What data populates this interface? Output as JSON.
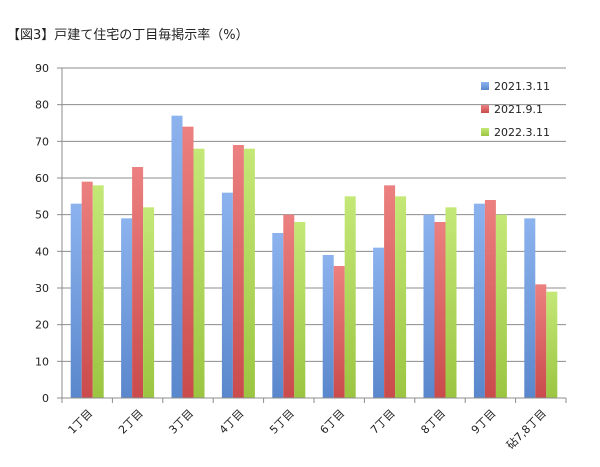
{
  "title": "【図3】戸建て住宅の丁目毎掲示率（%）",
  "colors": {
    "series": [
      "#6699e8",
      "#e65555",
      "#b0e04a"
    ],
    "grid": "#8c8c8c",
    "axis": "#8c8c8c"
  },
  "chart_data": {
    "type": "bar",
    "title": "【図3】戸建て住宅の丁目毎掲示率（%）",
    "xlabel": "",
    "ylabel": "",
    "ylim": [
      0,
      90
    ],
    "yticks": [
      0,
      10,
      20,
      30,
      40,
      50,
      60,
      70,
      80,
      90
    ],
    "grid": true,
    "legend_position": "top-right",
    "categories": [
      "1丁目",
      "2丁目",
      "3丁目",
      "4丁目",
      "5丁目",
      "6丁目",
      "7丁目",
      "8丁目",
      "9丁目",
      "砧7,8丁目"
    ],
    "series": [
      {
        "name": "2021.3.11",
        "values": [
          53,
          49,
          77,
          56,
          45,
          39,
          41,
          50,
          53,
          49
        ]
      },
      {
        "name": "2021.9.1",
        "values": [
          59,
          63,
          74,
          69,
          50,
          36,
          58,
          48,
          54,
          31
        ]
      },
      {
        "name": "2022.3.11",
        "values": [
          58,
          52,
          68,
          68,
          48,
          55,
          55,
          52,
          50,
          29
        ]
      }
    ]
  }
}
